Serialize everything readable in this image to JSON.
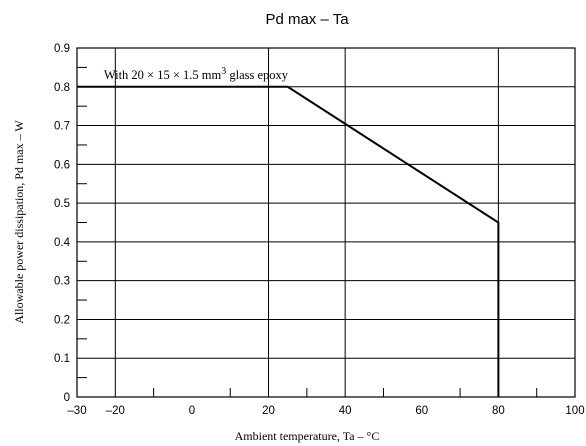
{
  "chart_data": {
    "type": "line",
    "title": "Pd max – Ta",
    "xlabel": "Ambient temperature, Ta – °C",
    "ylabel": "Allowable power dissipation, Pd max – W",
    "xlim": [
      -30,
      100
    ],
    "ylim": [
      0,
      0.9
    ],
    "x_ticks": [
      -30,
      -20,
      0,
      20,
      40,
      60,
      80,
      100
    ],
    "x_tick_labels": [
      "–30",
      "–20",
      "0",
      "20",
      "40",
      "60",
      "80",
      "100"
    ],
    "x_minor_ticks": [
      -10,
      10,
      30,
      50,
      70,
      90
    ],
    "x_grid": [
      -20,
      20,
      40,
      80
    ],
    "y_ticks": [
      0,
      0.1,
      0.2,
      0.3,
      0.4,
      0.5,
      0.6,
      0.7,
      0.8,
      0.9
    ],
    "y_tick_labels": [
      "0",
      "0.1",
      "0.2",
      "0.3",
      "0.4",
      "0.5",
      "0.6",
      "0.7",
      "0.8",
      "0.9"
    ],
    "y_minor_ticks": [
      0.05,
      0.15,
      0.25,
      0.35,
      0.45,
      0.55,
      0.65,
      0.75,
      0.85
    ],
    "y_grid": [
      0.1,
      0.2,
      0.3,
      0.4,
      0.5,
      0.6,
      0.7,
      0.8
    ],
    "grid": true,
    "series": [
      {
        "x": [
          -30,
          25,
          80,
          80
        ],
        "y": [
          0.8,
          0.8,
          0.45,
          0
        ]
      }
    ],
    "annotation": {
      "text_before": "With 20 × 15 × 1.5 mm",
      "superscript": "3",
      "text_after": " glass epoxy",
      "x": -23,
      "y": 0.82
    }
  }
}
